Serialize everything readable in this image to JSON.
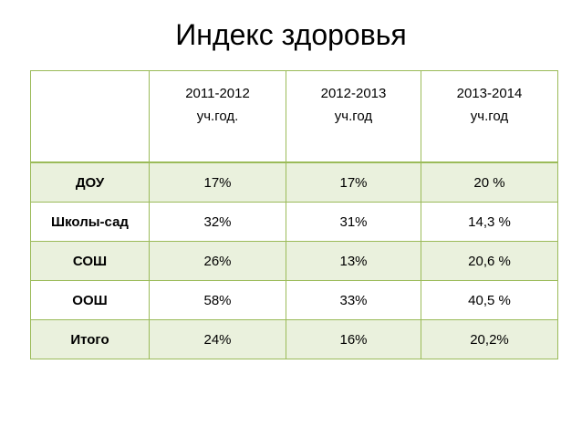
{
  "title": "Индекс здоровья",
  "table": {
    "headers": [
      {
        "years": "",
        "unit": ""
      },
      {
        "years": "2011-2012",
        "unit": "уч.год."
      },
      {
        "years": "2012-2013",
        "unit": "уч.год"
      },
      {
        "years": "2013-2014",
        "unit": "уч.год"
      }
    ],
    "rows": [
      {
        "label": "ДОУ",
        "values": [
          "17%",
          "17%",
          "20 %"
        ]
      },
      {
        "label": "Школы-сад",
        "values": [
          "32%",
          "31%",
          "14,3 %"
        ]
      },
      {
        "label": "СОШ",
        "values": [
          "26%",
          "13%",
          "20,6 %"
        ]
      },
      {
        "label": "ООШ",
        "values": [
          "58%",
          "33%",
          "40,5 %"
        ]
      },
      {
        "label": "Итого",
        "values": [
          "24%",
          "16%",
          "20,2%"
        ]
      }
    ]
  },
  "colors": {
    "border": "#9bbb59",
    "band": "#eaf1dd"
  }
}
